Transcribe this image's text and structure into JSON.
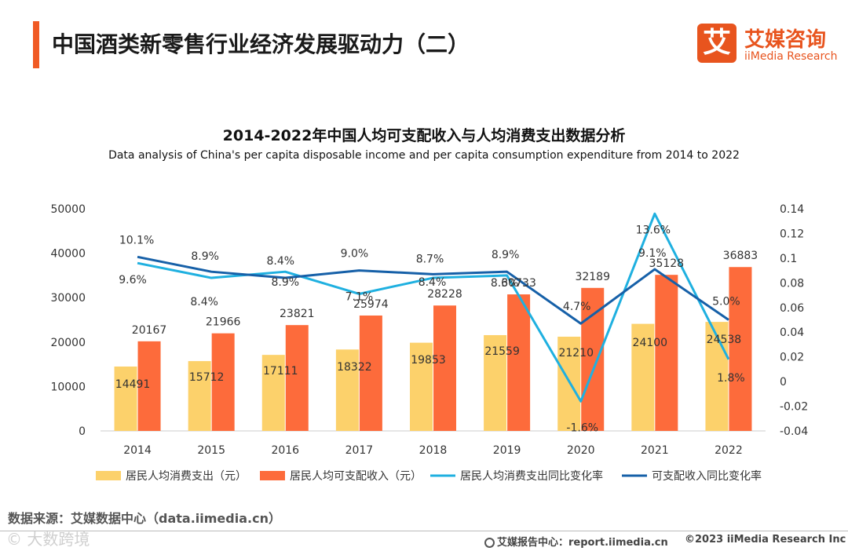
{
  "header": {
    "title": "中国酒类新零售行业经济发展驱动力（二）",
    "logo_mark": "艾",
    "logo_cn": "艾媒咨询",
    "logo_en": "iiMedia Research"
  },
  "chart_data": {
    "type": "bar+line",
    "title": "2014-2022年中国人均可支配收入与人均消费支出数据分析",
    "subtitle": "Data analysis of China's per capita disposable income and per capita consumption expenditure from 2014 to 2022",
    "categories": [
      "2014",
      "2015",
      "2016",
      "2017",
      "2018",
      "2019",
      "2020",
      "2021",
      "2022"
    ],
    "y_left": {
      "min": 0,
      "max": 50000,
      "ticks": [
        "0",
        "10000",
        "20000",
        "30000",
        "40000",
        "50000"
      ]
    },
    "y_right": {
      "min": -0.04,
      "max": 0.14,
      "ticks": [
        "-0.04",
        "-0.02",
        "0",
        "0.02",
        "0.04",
        "0.06",
        "0.08",
        "0.1",
        "0.12",
        "0.14"
      ]
    },
    "bars": [
      {
        "name": "居民人均消费支出（元）",
        "color": "#fcd16b",
        "values": [
          14491,
          15712,
          17111,
          18322,
          19853,
          21559,
          21210,
          24100,
          24538
        ],
        "labels": [
          "14491",
          "15712",
          "17111",
          "18322",
          "19853",
          "21559",
          "21210",
          "24100",
          "24538"
        ]
      },
      {
        "name": "居民人均可支配收入（元）",
        "color": "#fd6b3b",
        "values": [
          20167,
          21966,
          23821,
          25974,
          28228,
          30733,
          32189,
          35128,
          36883
        ],
        "labels": [
          "20167",
          "21966",
          "23821",
          "25974",
          "28228",
          "30733",
          "32189",
          "35128",
          "36883"
        ]
      }
    ],
    "lines": [
      {
        "name": "居民人均消费支出同比变化率",
        "color": "#1fb0e0",
        "values": [
          0.096,
          0.084,
          0.089,
          0.071,
          0.084,
          0.086,
          -0.016,
          0.136,
          0.018
        ],
        "labels": [
          "9.6%",
          "8.4%",
          "8.9%",
          "7.1%",
          "8.4%",
          "8.6%",
          "-1.6%",
          "13.6%",
          "1.8%"
        ]
      },
      {
        "name": "可支配收入同比变化率",
        "color": "#1660a8",
        "values": [
          0.101,
          0.089,
          0.084,
          0.09,
          0.087,
          0.089,
          0.047,
          0.091,
          0.05
        ],
        "labels": [
          "10.1%",
          "8.9%",
          "8.4%",
          "9.0%",
          "8.7%",
          "8.9%",
          "4.7%",
          "9.1%",
          "5.0%"
        ]
      }
    ],
    "legend_position": "bottom",
    "grid": false
  },
  "footer": {
    "source": "数据来源：艾媒数据中心（data.iimedia.cn）",
    "watermark": "©  大数跨境",
    "report": "艾媒报告中心：report.iimedia.cn",
    "copyright": "©2023  iiMedia Research  Inc"
  }
}
